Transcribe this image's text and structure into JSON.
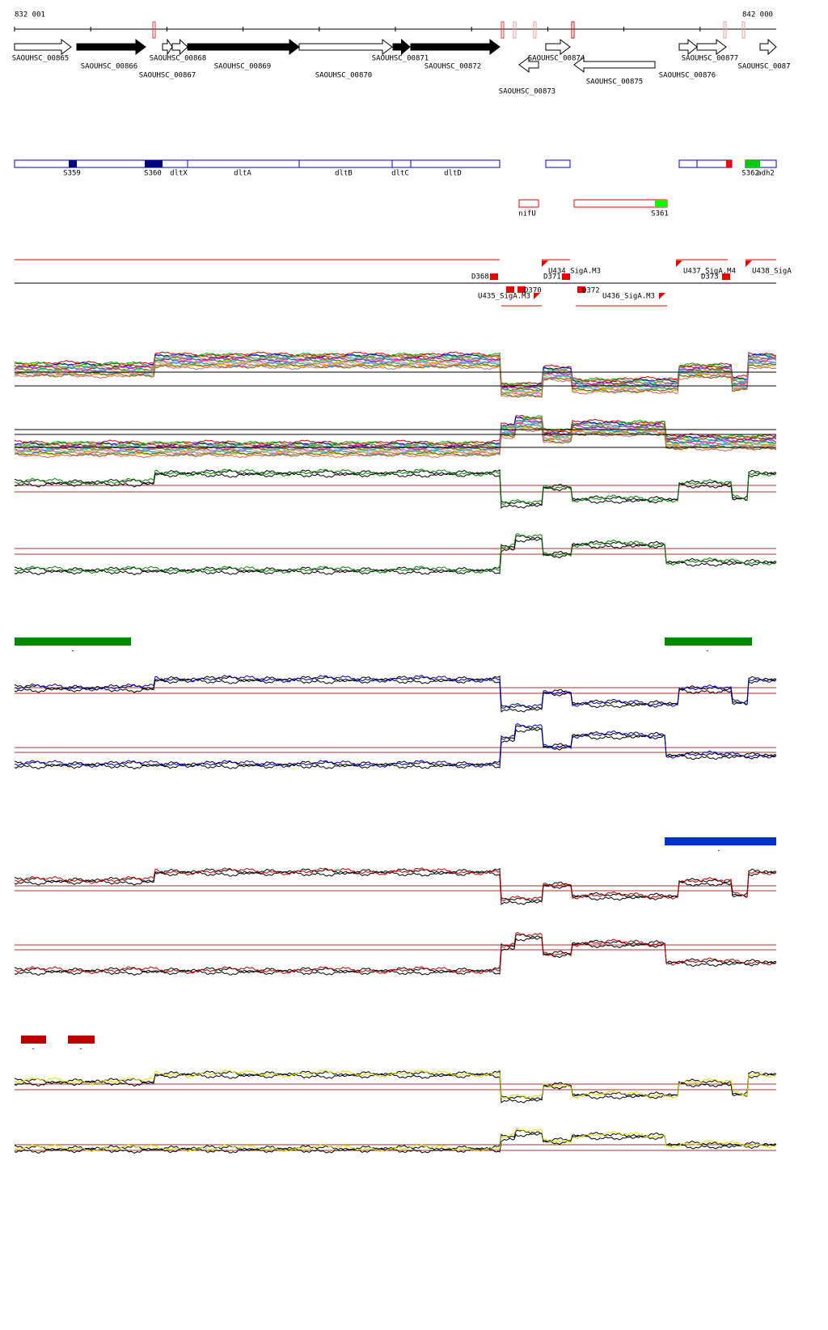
{
  "ruler": {
    "start": "832 001",
    "end": "842 000"
  },
  "genes": [
    "SAOUHSC_00865",
    "SAOUHSC_00866",
    "SAOUHSC_00867",
    "SAOUHSC_00868",
    "SAOUHSC_00869",
    "SAOUHSC_00870",
    "SAOUHSC_00871",
    "SAOUHSC_00872",
    "SAOUHSC_00873",
    "SAOUHSC_00874",
    "SAOUHSC_00875",
    "SAOUHSC_00876",
    "SAOUHSC_00877",
    "SAOUHSC_0087"
  ],
  "features": [
    "S359",
    "S360",
    "dltX",
    "dltA",
    "dltB",
    "dltC",
    "dltD",
    "S362",
    "adh2",
    "nifU",
    "S361"
  ],
  "promoters": [
    "D368",
    "U434_SigA.M3",
    "D371",
    "U437_SigA.M4",
    "D373",
    "U438_SigA",
    "U435_SigA.M3",
    "D370",
    "D372",
    "U436_SigA.M3"
  ],
  "bar_labels": [
    "-",
    "-",
    "-",
    "-",
    "-"
  ]
}
